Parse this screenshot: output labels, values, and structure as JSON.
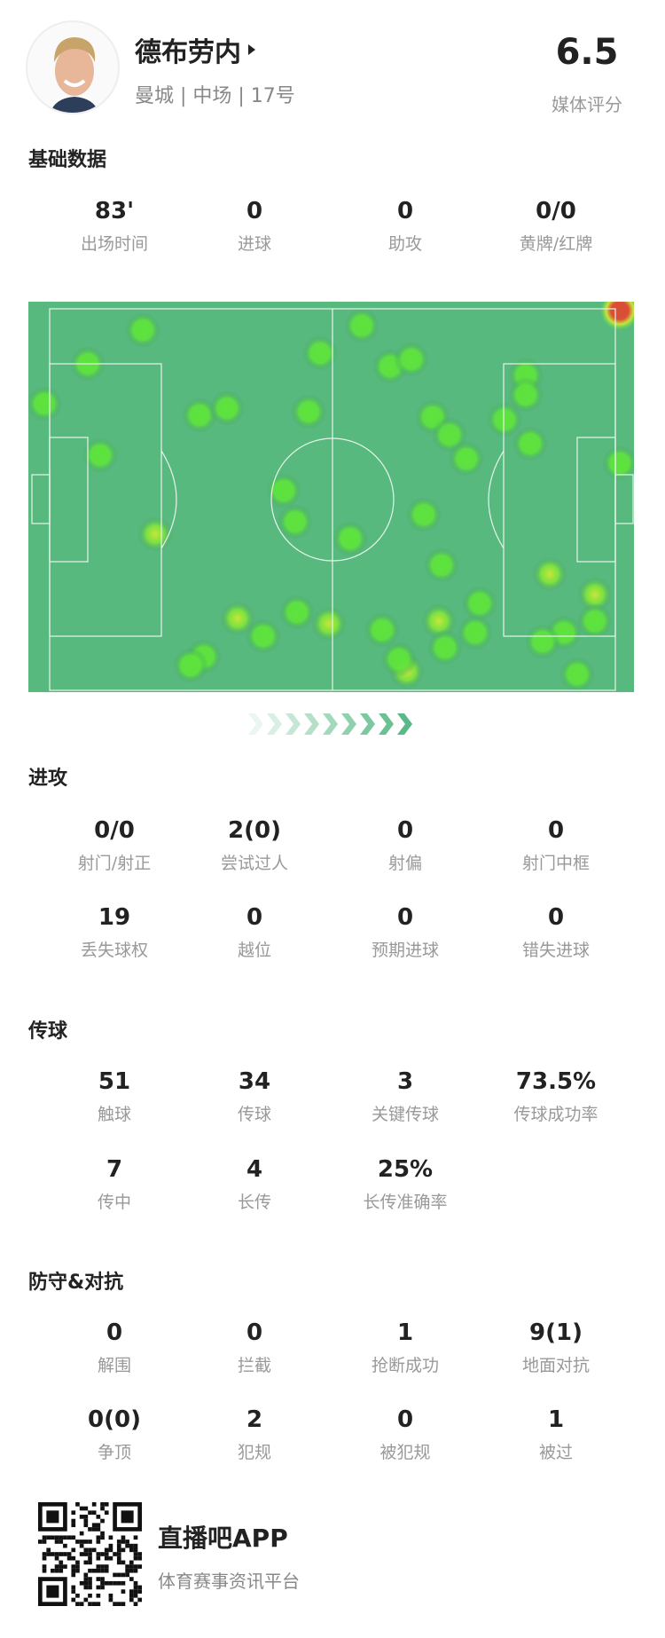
{
  "player": {
    "name": "德布劳内",
    "subtitle": "曼城 | 中场 | 17号",
    "rating": "6.5",
    "rating_label": "媒体评分"
  },
  "sections": [
    {
      "title": "基础数据",
      "stats": [
        {
          "value": "83'",
          "label": "出场时间"
        },
        {
          "value": "0",
          "label": "进球"
        },
        {
          "value": "0",
          "label": "助攻"
        },
        {
          "value": "0/0",
          "label": "黄牌/红牌"
        }
      ]
    },
    {
      "title": "进攻",
      "stats": [
        {
          "value": "0/0",
          "label": "射门/射正"
        },
        {
          "value": "2(0)",
          "label": "尝试过人"
        },
        {
          "value": "0",
          "label": "射偏"
        },
        {
          "value": "0",
          "label": "射门中框"
        },
        {
          "value": "19",
          "label": "丢失球权"
        },
        {
          "value": "0",
          "label": "越位"
        },
        {
          "value": "0",
          "label": "预期进球"
        },
        {
          "value": "0",
          "label": "错失进球"
        }
      ]
    },
    {
      "title": "传球",
      "stats": [
        {
          "value": "51",
          "label": "触球"
        },
        {
          "value": "34",
          "label": "传球"
        },
        {
          "value": "3",
          "label": "关键传球"
        },
        {
          "value": "73.5%",
          "label": "传球成功率"
        },
        {
          "value": "7",
          "label": "传中"
        },
        {
          "value": "4",
          "label": "长传"
        },
        {
          "value": "25%",
          "label": "长传准确率"
        }
      ]
    },
    {
      "title": "防守&对抗",
      "stats": [
        {
          "value": "0",
          "label": "解围"
        },
        {
          "value": "0",
          "label": "拦截"
        },
        {
          "value": "1",
          "label": "抢断成功"
        },
        {
          "value": "9(1)",
          "label": "地面对抗"
        },
        {
          "value": "0(0)",
          "label": "争顶"
        },
        {
          "value": "2",
          "label": "犯规"
        },
        {
          "value": "0",
          "label": "被犯规"
        },
        {
          "value": "1",
          "label": "被过"
        }
      ]
    }
  ],
  "heatmap": {
    "pitch_color": "#58b97e",
    "line_color": "#e6f4ea",
    "low": "#5ee43c",
    "mid": "#c9e53a",
    "high": "#d94f36",
    "direction": "attacking-right"
  },
  "footer": {
    "app_name": "直播吧APP",
    "slogan": "体育赛事资讯平台",
    "qr_icon": "qr-code"
  }
}
